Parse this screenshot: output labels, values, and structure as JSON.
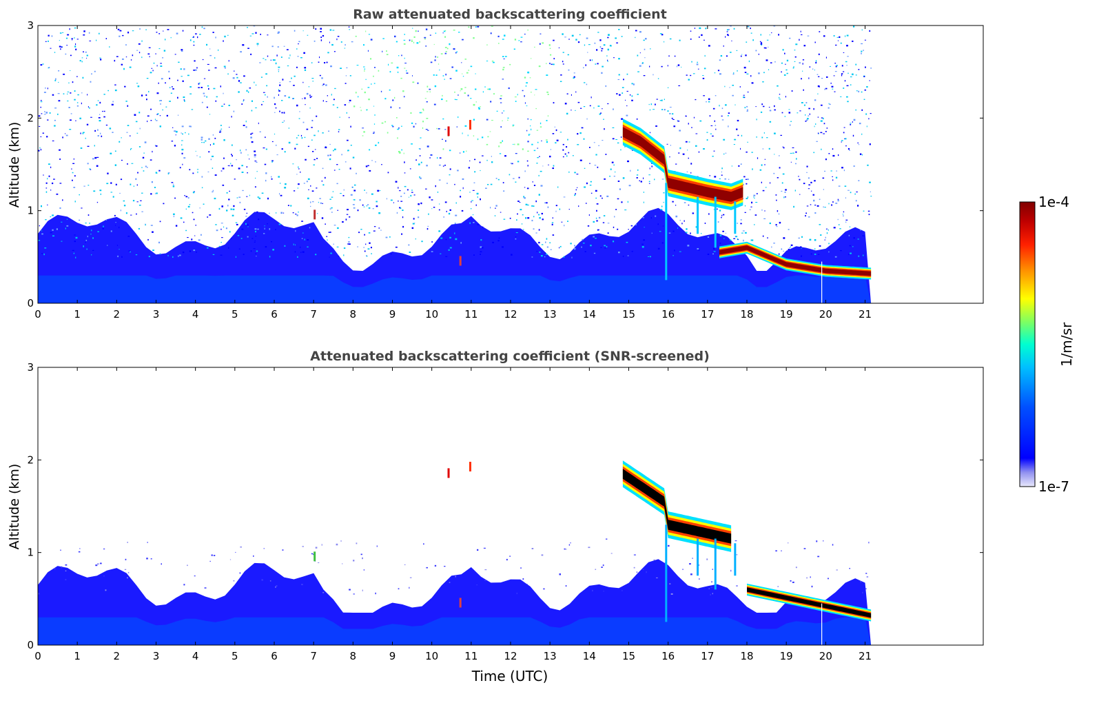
{
  "chart_data": [
    {
      "type": "heatmap",
      "title": "Raw attenuated backscattering coefficient",
      "xlabel": "",
      "ylabel": "Altitude (km)",
      "xlim": [
        0,
        24
      ],
      "ylim": [
        0,
        3
      ],
      "xticks": [
        "0",
        "1",
        "2",
        "3",
        "4",
        "5",
        "6",
        "7",
        "8",
        "9",
        "10",
        "11",
        "12",
        "13",
        "14",
        "15",
        "16",
        "17",
        "18",
        "19",
        "20",
        "21"
      ],
      "yticks": [
        "0",
        "1",
        "2",
        "3"
      ],
      "data_end_hour": 21.15,
      "layers": [
        {
          "name": "boundary-layer aerosol",
          "from_hour": 0,
          "to_hour": 21.15,
          "top_km": 0.75
        },
        {
          "name": "cloud layer",
          "points": [
            [
              14.85,
              1.85
            ],
            [
              15.3,
              1.75
            ],
            [
              15.9,
              1.55
            ],
            [
              16.0,
              1.3
            ],
            [
              17.0,
              1.2
            ],
            [
              17.6,
              1.15
            ],
            [
              17.9,
              1.2
            ],
            [
              17.3,
              0.55
            ],
            [
              18.0,
              0.6
            ],
            [
              19.0,
              0.42
            ],
            [
              20.0,
              0.35
            ],
            [
              21.15,
              0.32
            ]
          ]
        }
      ]
    },
    {
      "type": "heatmap",
      "title": "Attenuated backscattering coefficient (SNR-screened)",
      "xlabel": "Time (UTC)",
      "ylabel": "Altitude (km)",
      "xlim": [
        0,
        24
      ],
      "ylim": [
        0,
        3
      ],
      "xticks": [
        "0",
        "1",
        "2",
        "3",
        "4",
        "5",
        "6",
        "7",
        "8",
        "9",
        "10",
        "11",
        "12",
        "13",
        "14",
        "15",
        "16",
        "17",
        "18",
        "19",
        "20",
        "21"
      ],
      "yticks": [
        "0",
        "1",
        "2",
        "3"
      ],
      "data_end_hour": 21.15,
      "layers": [
        {
          "name": "screened boundary layer",
          "from_hour": 0,
          "to_hour": 21.15,
          "top_km": 0.7
        },
        {
          "name": "cloud layer",
          "points": [
            [
              14.85,
              1.85
            ],
            [
              15.9,
              1.55
            ],
            [
              16.0,
              1.3
            ],
            [
              17.6,
              1.15
            ],
            [
              18.0,
              0.6
            ],
            [
              21.15,
              0.32
            ]
          ]
        }
      ]
    }
  ],
  "colorbar": {
    "label": "1/m/sr",
    "max_label": "1e-4",
    "min_label": "1e-7",
    "scale": "log",
    "range": [
      1e-07,
      0.0001
    ]
  },
  "colors": {
    "low": "#e8e8fb",
    "blue": "#0000ff",
    "cyan": "#00d8ff",
    "yellow": "#ffff00",
    "red": "#e00000",
    "darkred": "#800000",
    "black": "#000000",
    "title": "#444444"
  }
}
